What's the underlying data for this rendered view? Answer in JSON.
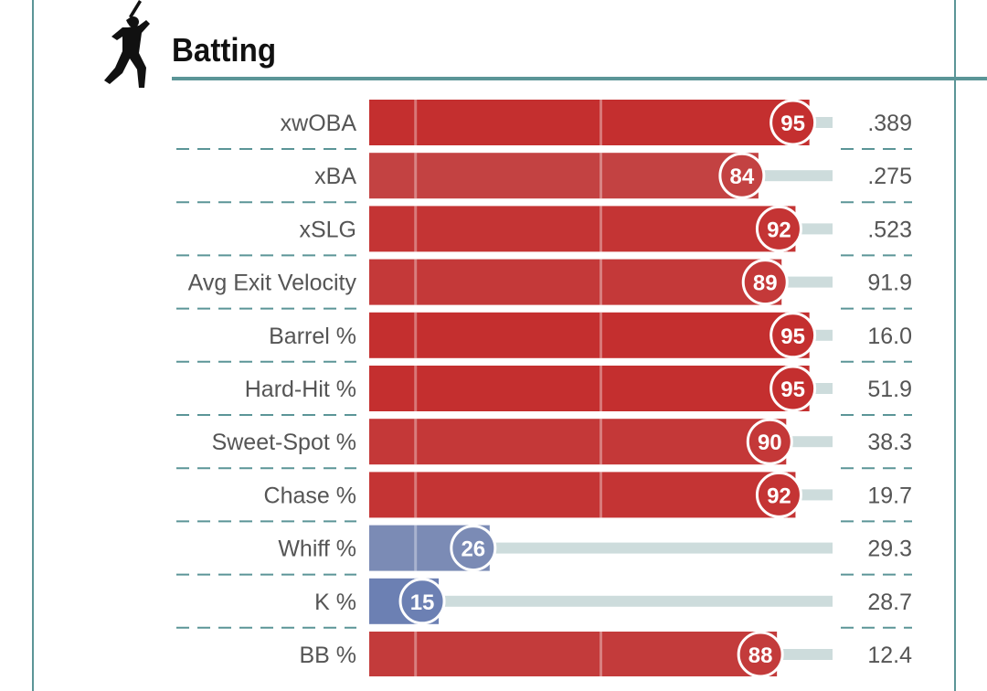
{
  "header": {
    "title": "Batting",
    "icon": "batter-silhouette-icon"
  },
  "colors": {
    "frame": "#5b9597",
    "track": "#cddcdc",
    "gridline": "#ffffff",
    "high": "#c42f2f",
    "low": "#5a72b0"
  },
  "chart_data": {
    "type": "bar",
    "title": "Batting",
    "xlim": [
      0,
      100
    ],
    "categories": [
      "xwOBA",
      "xBA",
      "xSLG",
      "Avg Exit Velocity",
      "Barrel %",
      "Hard-Hit %",
      "Sweet-Spot %",
      "Chase %",
      "Whiff %",
      "K %",
      "BB %"
    ],
    "percentiles": [
      95,
      84,
      92,
      89,
      95,
      95,
      90,
      92,
      26,
      15,
      88
    ],
    "values": [
      ".389",
      ".275",
      ".523",
      "91.9",
      "16.0",
      "51.9",
      "38.3",
      "19.7",
      "29.3",
      "28.7",
      "12.4"
    ],
    "reference_lines": [
      10,
      50,
      90
    ]
  }
}
